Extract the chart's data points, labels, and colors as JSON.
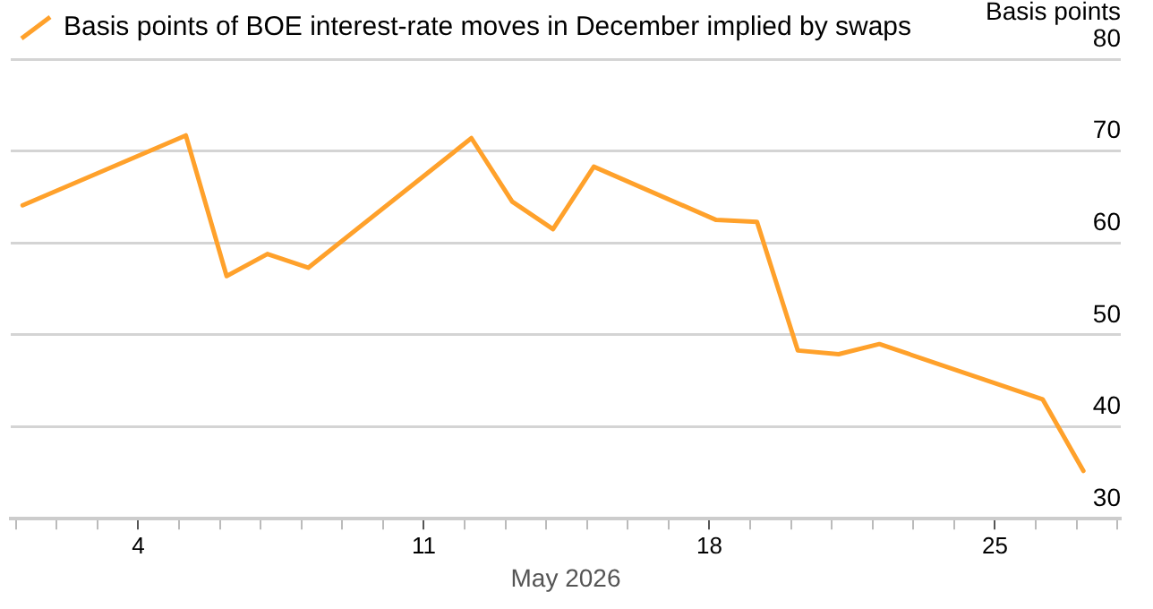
{
  "chart_data": {
    "type": "line",
    "xlabel": "May 2026",
    "ylabel": "Basis points",
    "x": [
      "2026-05-01T04:00",
      "2026-05-05T04:00",
      "2026-05-06T04:00",
      "2026-05-07T04:00",
      "2026-05-08T04:00",
      "2026-05-12T04:00",
      "2026-05-13T04:00",
      "2026-05-14T04:00",
      "2026-05-15T04:00",
      "2026-05-18T04:00",
      "2026-05-19T04:00",
      "2026-05-20T04:00",
      "2026-05-21T04:00",
      "2026-05-22T04:00",
      "2026-05-26T04:00",
      "2026-05-27T04:00"
    ],
    "series": [
      {
        "name": "Basis points of BOE interest-rate moves in December implied by swaps",
        "color": "#ffa12b",
        "values": [
          64.1,
          71.7,
          56.4,
          58.8,
          57.3,
          71.4,
          64.5,
          61.5,
          68.3,
          62.5,
          62.3,
          48.3,
          47.9,
          49.0,
          43.0,
          35.2
        ]
      }
    ],
    "xlim": [
      "2026-04-30T21:00",
      "2026-05-28T02:00"
    ],
    "xticks": [
      {
        "value": "2026-05-01",
        "label": null
      },
      {
        "value": "2026-05-02",
        "label": null
      },
      {
        "value": "2026-05-03",
        "label": null
      },
      {
        "value": "2026-05-04",
        "label": "4"
      },
      {
        "value": "2026-05-05",
        "label": null
      },
      {
        "value": "2026-05-06",
        "label": null
      },
      {
        "value": "2026-05-07",
        "label": null
      },
      {
        "value": "2026-05-08",
        "label": null
      },
      {
        "value": "2026-05-09",
        "label": null
      },
      {
        "value": "2026-05-10",
        "label": null
      },
      {
        "value": "2026-05-11",
        "label": "11"
      },
      {
        "value": "2026-05-12",
        "label": null
      },
      {
        "value": "2026-05-13",
        "label": null
      },
      {
        "value": "2026-05-14",
        "label": null
      },
      {
        "value": "2026-05-15",
        "label": null
      },
      {
        "value": "2026-05-16",
        "label": null
      },
      {
        "value": "2026-05-17",
        "label": null
      },
      {
        "value": "2026-05-18",
        "label": "18"
      },
      {
        "value": "2026-05-19",
        "label": null
      },
      {
        "value": "2026-05-20",
        "label": null
      },
      {
        "value": "2026-05-21",
        "label": null
      },
      {
        "value": "2026-05-22",
        "label": null
      },
      {
        "value": "2026-05-23",
        "label": null
      },
      {
        "value": "2026-05-24",
        "label": null
      },
      {
        "value": "2026-05-25",
        "label": "25"
      },
      {
        "value": "2026-05-26",
        "label": null
      },
      {
        "value": "2026-05-27",
        "label": null
      },
      {
        "value": "2026-05-28",
        "label": null
      }
    ],
    "ylim": [
      30,
      80
    ],
    "yticks": [
      30,
      40,
      50,
      60,
      70,
      80
    ],
    "grid": "y",
    "legend": "top left",
    "marker": "none",
    "line_style": "solid"
  }
}
